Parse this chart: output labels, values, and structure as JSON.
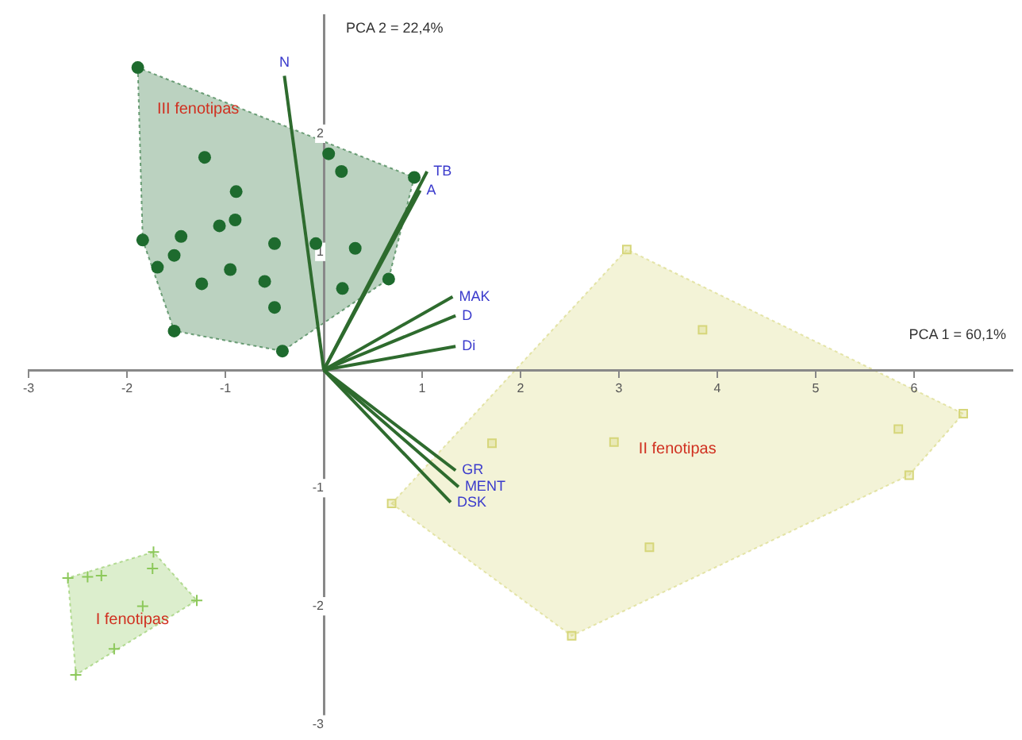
{
  "chart_data": {
    "type": "scatter",
    "xlabel": "PCA 1 = 60,1%",
    "ylabel": "PCA 2 = 22,4%",
    "xlim": [
      -3,
      7
    ],
    "ylim": [
      -3,
      3
    ],
    "xticks": [
      -3,
      -2,
      -1,
      1,
      2,
      3,
      4,
      5,
      6
    ],
    "yticks": [
      -3,
      -2,
      -1,
      1,
      2
    ],
    "grid": false,
    "legend": false,
    "series": [
      {
        "marker": "circle",
        "color": "#1e6b2e",
        "x": [
          -1.89,
          -1.21,
          -0.89,
          -1.06,
          -0.9,
          -1.84,
          -1.45,
          -1.52,
          -1.69,
          -1.24,
          -0.95,
          -0.5,
          -0.6,
          -0.5,
          -1.52,
          -0.42,
          0.05,
          0.18,
          0.92,
          -0.08,
          0.32,
          0.19,
          0.66
        ],
        "values": [
          2.56,
          1.8,
          1.51,
          1.22,
          1.27,
          1.1,
          1.13,
          0.97,
          0.87,
          0.73,
          0.85,
          1.07,
          0.75,
          0.53,
          0.33,
          0.16,
          1.83,
          1.68,
          1.63,
          1.07,
          1.03,
          0.69,
          0.77
        ]
      },
      {
        "marker": "square",
        "color": "#d6d67a",
        "x": [
          3.08,
          3.85,
          6.5,
          5.84,
          5.95,
          2.95,
          1.71,
          3.31,
          2.52,
          0.69
        ],
        "values": [
          1.02,
          0.34,
          -0.37,
          -0.5,
          -0.89,
          -0.61,
          -0.62,
          -1.5,
          -2.25,
          -1.13
        ]
      },
      {
        "marker": "cross",
        "color": "#8cc85a",
        "x": [
          -1.73,
          -2.6,
          -1.29,
          -2.52,
          -2.13,
          -1.84,
          -2.4,
          -2.26,
          -1.74
        ],
        "values": [
          -1.54,
          -1.76,
          -1.95,
          -2.58,
          -2.36,
          -2.0,
          -1.75,
          -1.74,
          -1.68
        ]
      },
      {
        "type": "line",
        "name": "N",
        "color": "#2e6b2e",
        "x": [
          0,
          -0.4
        ],
        "values": [
          0,
          2.49
        ]
      },
      {
        "type": "line",
        "name": "TB",
        "color": "#2e6b2e",
        "x": [
          0,
          1.05
        ],
        "values": [
          0,
          1.68
        ]
      },
      {
        "type": "line",
        "name": "A",
        "color": "#2e6b2e",
        "x": [
          0,
          0.98
        ],
        "values": [
          0,
          1.52
        ]
      },
      {
        "type": "line",
        "name": "MAK",
        "color": "#2e6b2e",
        "x": [
          0,
          1.31
        ],
        "values": [
          0,
          0.62
        ]
      },
      {
        "type": "line",
        "name": "D",
        "color": "#2e6b2e",
        "x": [
          0,
          1.34
        ],
        "values": [
          0,
          0.46
        ]
      },
      {
        "type": "line",
        "name": "Di",
        "color": "#2e6b2e",
        "x": [
          0,
          1.34
        ],
        "values": [
          0,
          0.2
        ]
      },
      {
        "type": "line",
        "name": "GR",
        "color": "#2e6b2e",
        "x": [
          0,
          1.34
        ],
        "values": [
          0,
          -0.85
        ]
      },
      {
        "type": "line",
        "name": "MENT",
        "color": "#2e6b2e",
        "x": [
          0,
          1.37
        ],
        "values": [
          0,
          -0.99
        ]
      },
      {
        "type": "line",
        "name": "DSK",
        "color": "#2e6b2e",
        "x": [
          0,
          1.29
        ],
        "values": [
          0,
          -1.12
        ]
      }
    ],
    "annotations": [
      "III fenotipas",
      "II fenotipas",
      "I fenotipas"
    ]
  }
}
